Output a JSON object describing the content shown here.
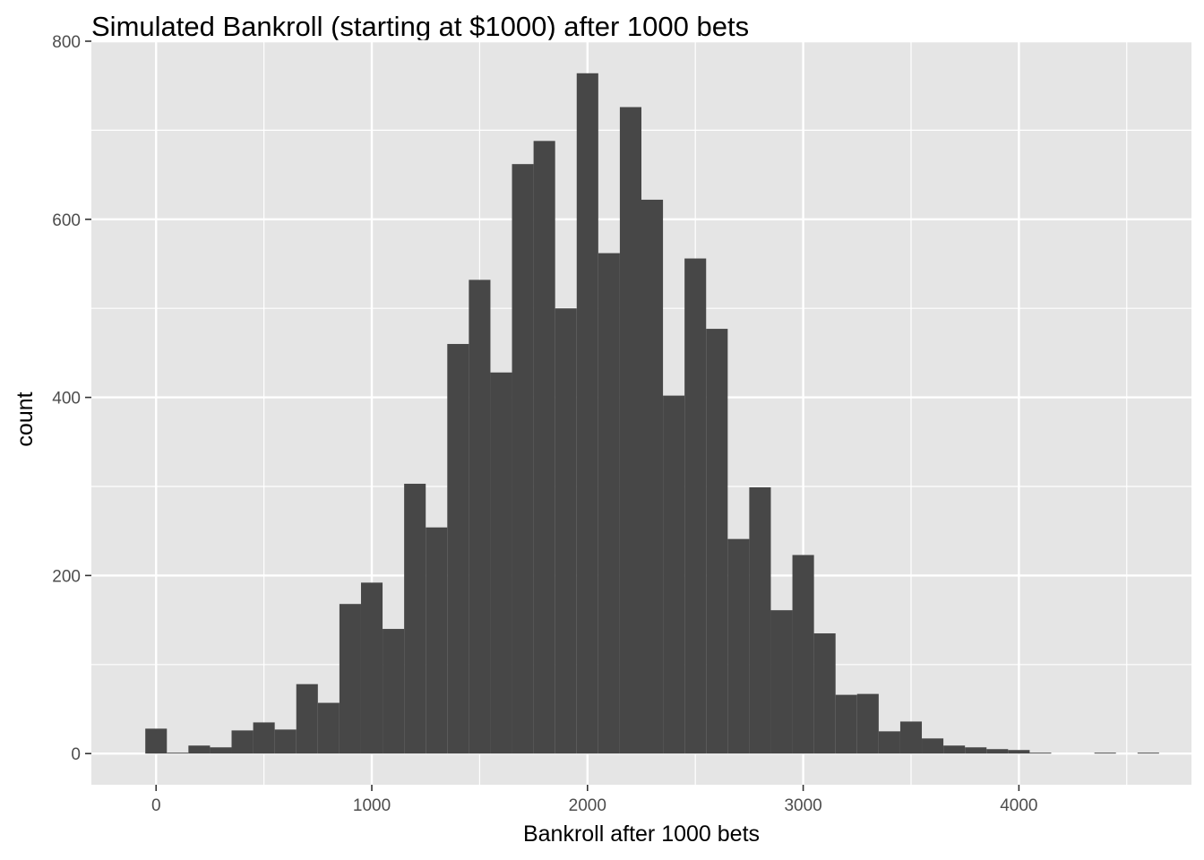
{
  "chart_data": {
    "type": "bar",
    "title": "Simulated Bankroll (starting at $1000) after 1000 bets",
    "xlabel": "Bankroll after 1000 bets",
    "ylabel": "count",
    "xlim": [
      -300,
      4800
    ],
    "ylim": [
      -35,
      800
    ],
    "x_ticks": [
      0,
      1000,
      2000,
      3000,
      4000
    ],
    "x_tick_labels": [
      "0",
      "1000",
      "2000",
      "3000",
      "4000"
    ],
    "y_ticks": [
      0,
      200,
      400,
      600,
      800
    ],
    "y_tick_labels": [
      "0",
      "200",
      "400",
      "600",
      "800"
    ],
    "grid": true,
    "bar_color": "#474747",
    "panel_background": "#e5e5e5",
    "gridline_color": "#ffffff",
    "bin_width": 100,
    "bin_centers": [
      0,
      100,
      200,
      300,
      400,
      500,
      600,
      700,
      800,
      900,
      1000,
      1100,
      1200,
      1300,
      1400,
      1500,
      1600,
      1700,
      1800,
      1900,
      2000,
      2100,
      2200,
      2300,
      2400,
      2500,
      2600,
      2700,
      2800,
      2900,
      3000,
      3100,
      3200,
      3300,
      3400,
      3500,
      3600,
      3700,
      3800,
      3900,
      4000,
      4100,
      4200,
      4300,
      4400,
      4500,
      4600
    ],
    "values": [
      28,
      1,
      9,
      7,
      26,
      35,
      27,
      78,
      57,
      168,
      192,
      140,
      303,
      254,
      460,
      532,
      428,
      662,
      688,
      500,
      764,
      562,
      726,
      622,
      402,
      556,
      477,
      241,
      299,
      161,
      223,
      135,
      66,
      67,
      25,
      36,
      17,
      9,
      7,
      5,
      4,
      1,
      0,
      0,
      1,
      0,
      1
    ]
  }
}
